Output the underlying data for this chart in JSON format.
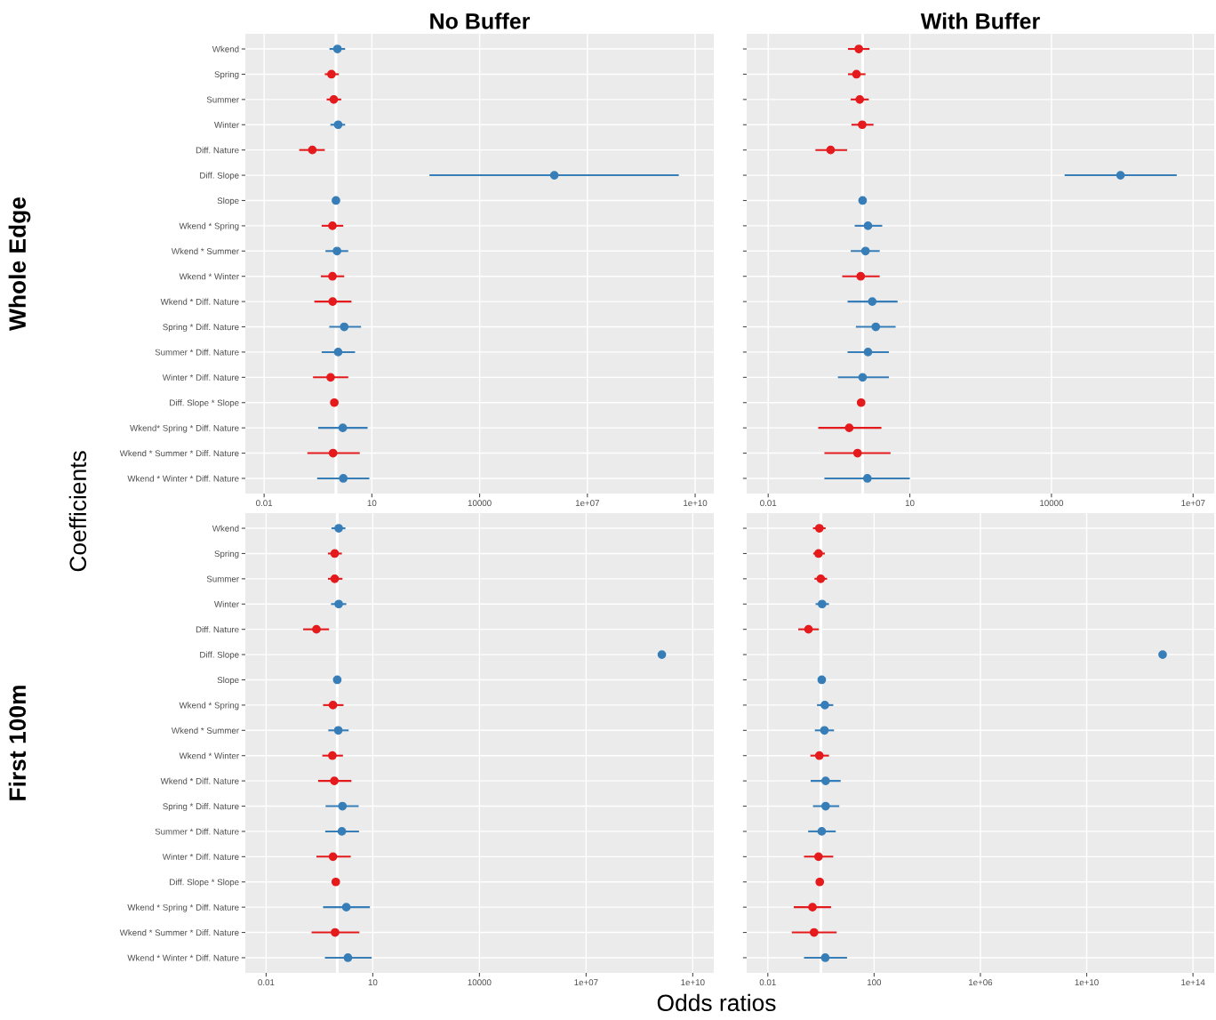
{
  "chart_data": [
    {
      "type": "scatter",
      "title": "No Buffer",
      "ylabel": "Whole Edge",
      "orientation": "horizontal",
      "log": "x",
      "grid": true,
      "marker": "circle",
      "annotations": [
        "Coefficients",
        "Odds ratios"
      ],
      "categories": [
        "Wkend",
        "Spring",
        "Summer",
        "Winter",
        "Diff. Nature",
        "Diff. Slope",
        "Slope",
        "Wkend * Spring",
        "Wkend * Summer",
        "Wkend * Winter",
        "Wkend * Diff. Nature",
        "Spring * Diff. Nature",
        "Summer * Diff. Nature",
        "Winter * Diff. Nature",
        "Diff. Slope * Slope",
        "Wkend* Spring * Diff. Nature",
        "Wkend * Summer * Diff. Nature",
        "Wkend * Winter * Diff. Nature"
      ],
      "values": [
        1.1,
        0.75,
        0.87,
        1.15,
        0.22,
        1200000,
        1.0,
        0.8,
        1.07,
        0.8,
        0.81,
        1.7,
        1.15,
        0.71,
        0.9,
        1.55,
        0.83,
        1.6
      ],
      "errors": [
        [
          0.66,
          1.8
        ],
        [
          0.49,
          1.2
        ],
        [
          0.55,
          1.4
        ],
        [
          0.7,
          1.8
        ],
        [
          0.095,
          0.49
        ],
        [
          400,
          3500000000
        ],
        null,
        [
          0.4,
          1.6
        ],
        [
          0.51,
          2.2
        ],
        [
          0.38,
          1.7
        ],
        [
          0.25,
          2.7
        ],
        [
          0.65,
          5.0
        ],
        [
          0.4,
          3.4
        ],
        [
          0.23,
          2.2
        ],
        null,
        [
          0.32,
          7.6
        ],
        [
          0.16,
          4.6
        ],
        [
          0.3,
          8.5
        ]
      ],
      "colors": [
        "#377eb8",
        "#e41a1c",
        "#e41a1c",
        "#377eb8",
        "#e41a1c",
        "#377eb8",
        "#377eb8",
        "#e41a1c",
        "#377eb8",
        "#e41a1c",
        "#e41a1c",
        "#377eb8",
        "#377eb8",
        "#e41a1c",
        "#e41a1c",
        "#377eb8",
        "#e41a1c",
        "#377eb8"
      ],
      "xlim": [
        0.003,
        33000000000
      ],
      "xticks": [
        0.01,
        10,
        10000,
        {
          "value": 10000000,
          "label": "1e+07"
        },
        {
          "value": 10000000000,
          "label": "1e+10"
        }
      ],
      "ref_lines": [
        {
          "axis": "x",
          "value": 1,
          "color": "#ffffff"
        }
      ]
    },
    {
      "type": "scatter",
      "title": "With Buffer",
      "orientation": "horizontal",
      "log": "x",
      "grid": true,
      "marker": "circle",
      "categories": [
        null,
        null,
        null,
        null,
        null,
        null,
        null,
        null,
        null,
        null,
        null,
        null,
        null,
        null,
        null,
        null,
        null,
        null
      ],
      "values": [
        0.83,
        0.74,
        0.87,
        0.98,
        0.21,
        290000,
        1.0,
        1.3,
        1.15,
        0.91,
        1.6,
        1.9,
        1.3,
        1.0,
        0.93,
        0.52,
        0.78,
        1.26
      ],
      "errors": [
        [
          0.49,
          1.4
        ],
        [
          0.49,
          1.15
        ],
        [
          0.56,
          1.35
        ],
        [
          0.58,
          1.7
        ],
        [
          0.1,
          0.47
        ],
        [
          19000,
          4500000
        ],
        null,
        [
          0.68,
          2.6
        ],
        [
          0.56,
          2.3
        ],
        [
          0.37,
          2.3
        ],
        [
          0.48,
          5.5
        ],
        [
          0.72,
          5.0
        ],
        [
          0.48,
          3.6
        ],
        [
          0.3,
          3.6
        ],
        null,
        [
          0.115,
          2.5
        ],
        [
          0.155,
          3.9
        ],
        [
          0.155,
          10
        ]
      ],
      "colors": [
        "#e41a1c",
        "#e41a1c",
        "#e41a1c",
        "#e41a1c",
        "#e41a1c",
        "#377eb8",
        "#377eb8",
        "#377eb8",
        "#377eb8",
        "#e41a1c",
        "#377eb8",
        "#377eb8",
        "#377eb8",
        "#377eb8",
        "#e41a1c",
        "#e41a1c",
        "#e41a1c",
        "#377eb8"
      ],
      "xlim": [
        0.0035,
        28000000
      ],
      "xticks": [
        0.01,
        10,
        10000,
        {
          "value": 10000000,
          "label": "1e+07"
        }
      ],
      "ref_lines": [
        {
          "axis": "x",
          "value": 1,
          "color": "#ffffff"
        }
      ]
    },
    {
      "type": "scatter",
      "ylabel": "First 100m",
      "orientation": "horizontal",
      "log": "x",
      "grid": true,
      "marker": "circle",
      "categories": [
        "Wkend",
        "Spring",
        "Summer",
        "Winter",
        "Diff. Nature",
        "Diff. Slope",
        "Slope",
        "Wkend * Spring",
        "Wkend * Summer",
        "Wkend * Winter",
        "Wkend * Diff. Nature",
        "Spring * Diff. Nature",
        "Summer * Diff. Nature",
        "Winter * Diff. Nature",
        "Diff. Slope * Slope",
        "Wkend * Spring * Diff. Nature",
        "Wkend * Summer * Diff. Nature",
        "Wkend * Winter * Diff. Nature"
      ],
      "values": [
        1.1,
        0.85,
        0.85,
        1.1,
        0.26,
        1350000000,
        1.0,
        0.76,
        1.07,
        0.73,
        0.83,
        1.4,
        1.35,
        0.76,
        0.91,
        1.8,
        0.87,
        2.0
      ],
      "errors": [
        [
          0.69,
          1.7
        ],
        [
          0.55,
          1.35
        ],
        [
          0.55,
          1.4
        ],
        [
          0.67,
          1.8
        ],
        [
          0.11,
          0.59
        ],
        null,
        null,
        [
          0.4,
          1.5
        ],
        [
          0.56,
          2.1
        ],
        [
          0.38,
          1.45
        ],
        [
          0.29,
          2.5
        ],
        [
          0.47,
          4.0
        ],
        [
          0.46,
          4.1
        ],
        [
          0.26,
          2.4
        ],
        null,
        [
          0.4,
          8.3
        ],
        [
          0.19,
          4.2
        ],
        [
          0.45,
          9.3
        ]
      ],
      "colors": [
        "#377eb8",
        "#e41a1c",
        "#e41a1c",
        "#377eb8",
        "#e41a1c",
        "#377eb8",
        "#377eb8",
        "#e41a1c",
        "#377eb8",
        "#e41a1c",
        "#e41a1c",
        "#377eb8",
        "#377eb8",
        "#e41a1c",
        "#e41a1c",
        "#377eb8",
        "#e41a1c",
        "#377eb8"
      ],
      "xlim": [
        0.0026,
        39000000000
      ],
      "xticks": [
        0.01,
        10,
        10000,
        {
          "value": 10000000,
          "label": "1e+07"
        },
        {
          "value": 10000000000,
          "label": "1e+10"
        }
      ],
      "ref_lines": [
        {
          "axis": "x",
          "value": 1,
          "color": "#ffffff"
        }
      ]
    },
    {
      "type": "scatter",
      "orientation": "horizontal",
      "log": "x",
      "grid": true,
      "marker": "circle",
      "categories": [
        null,
        null,
        null,
        null,
        null,
        null,
        null,
        null,
        null,
        null,
        null,
        null,
        null,
        null,
        null,
        null,
        null,
        null
      ],
      "values": [
        0.87,
        0.81,
        0.98,
        1.1,
        0.34,
        7200000000000,
        1.07,
        1.4,
        1.35,
        0.87,
        1.5,
        1.5,
        1.07,
        0.81,
        0.9,
        0.48,
        0.55,
        1.45
      ],
      "errors": [
        [
          0.5,
          1.5
        ],
        [
          0.51,
          1.4
        ],
        [
          0.57,
          1.7
        ],
        [
          0.63,
          2.0
        ],
        [
          0.14,
          0.83
        ],
        null,
        null,
        [
          0.71,
          2.9
        ],
        [
          0.59,
          3.1
        ],
        [
          0.4,
          2.0
        ],
        [
          0.41,
          5.5
        ],
        [
          0.5,
          4.9
        ],
        [
          0.33,
          3.6
        ],
        [
          0.23,
          2.9
        ],
        null,
        [
          0.095,
          2.4
        ],
        [
          0.08,
          3.9
        ],
        [
          0.23,
          9.6
        ]
      ],
      "colors": [
        "#e41a1c",
        "#e41a1c",
        "#e41a1c",
        "#377eb8",
        "#e41a1c",
        "#377eb8",
        "#377eb8",
        "#377eb8",
        "#377eb8",
        "#e41a1c",
        "#377eb8",
        "#377eb8",
        "#377eb8",
        "#e41a1c",
        "#e41a1c",
        "#e41a1c",
        "#e41a1c",
        "#377eb8"
      ],
      "xlim": [
        0.0016,
        630000000000000
      ],
      "xticks": [
        0.01,
        100,
        {
          "value": 1000000,
          "label": "1e+06"
        },
        {
          "value": 10000000000,
          "label": "1e+10"
        },
        {
          "value": 100000000000000,
          "label": "1e+14"
        }
      ],
      "ref_lines": [
        {
          "axis": "x",
          "value": 1,
          "color": "#ffffff"
        }
      ]
    }
  ]
}
